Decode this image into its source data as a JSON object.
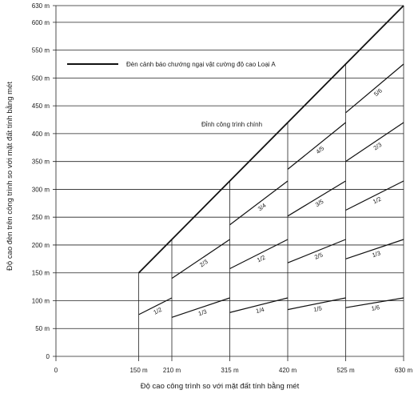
{
  "chart_data": {
    "type": "line",
    "title": "",
    "xlabel": "Độ cao công trình so với mặt đất tính bằng mét",
    "ylabel": "Độ cao đèn trên công trình so với mặt đất tính bằng mét",
    "xlim": [
      0,
      630
    ],
    "ylim": [
      0,
      630
    ],
    "x_ticks": [
      {
        "value": 0,
        "label": "0"
      },
      {
        "value": 150,
        "label": "150 m"
      },
      {
        "value": 210,
        "label": "210 m"
      },
      {
        "value": 315,
        "label": "315 m"
      },
      {
        "value": 420,
        "label": "420 m"
      },
      {
        "value": 525,
        "label": "525 m"
      },
      {
        "value": 630,
        "label": "630 m"
      }
    ],
    "y_ticks": [
      {
        "value": 0,
        "label": "0"
      },
      {
        "value": 50,
        "label": "50 m"
      },
      {
        "value": 100,
        "label": "100 m"
      },
      {
        "value": 150,
        "label": "150 m"
      },
      {
        "value": 200,
        "label": "200 m"
      },
      {
        "value": 250,
        "label": "250 m"
      },
      {
        "value": 300,
        "label": "300 m"
      },
      {
        "value": 350,
        "label": "350 m"
      },
      {
        "value": 400,
        "label": "400 m"
      },
      {
        "value": 450,
        "label": "450 m"
      },
      {
        "value": 500,
        "label": "500 m"
      },
      {
        "value": 550,
        "label": "550 m"
      },
      {
        "value": 600,
        "label": "600 m"
      },
      {
        "value": 630,
        "label": "630 m"
      }
    ],
    "grid": true,
    "legend": {
      "label": "Đèn cảnh báo chướng ngại vật cường độ cao  Loại A",
      "placement": "top-left"
    },
    "annotation": "Đỉnh công trình chính",
    "envelope": {
      "x": [
        150,
        630
      ],
      "y": [
        150,
        630
      ]
    },
    "segments": [
      {
        "label": "1/2",
        "x": [
          150,
          210
        ],
        "y": [
          75,
          105
        ]
      },
      {
        "label": "1/3",
        "x": [
          210,
          315
        ],
        "y": [
          70,
          105
        ]
      },
      {
        "label": "2/3",
        "x": [
          210,
          315
        ],
        "y": [
          140,
          210
        ]
      },
      {
        "label": "1/4",
        "x": [
          315,
          420
        ],
        "y": [
          78.75,
          105
        ]
      },
      {
        "label": "1/2",
        "x": [
          315,
          420
        ],
        "y": [
          157.5,
          210
        ]
      },
      {
        "label": "3/4",
        "x": [
          315,
          420
        ],
        "y": [
          236.25,
          315
        ]
      },
      {
        "label": "1/5",
        "x": [
          420,
          525
        ],
        "y": [
          84,
          105
        ]
      },
      {
        "label": "2/5",
        "x": [
          420,
          525
        ],
        "y": [
          168,
          210
        ]
      },
      {
        "label": "3/5",
        "x": [
          420,
          525
        ],
        "y": [
          252,
          315
        ]
      },
      {
        "label": "4/5",
        "x": [
          420,
          525
        ],
        "y": [
          336,
          420
        ]
      },
      {
        "label": "1/6",
        "x": [
          525,
          630
        ],
        "y": [
          87.5,
          105
        ]
      },
      {
        "label": "1/3",
        "x": [
          525,
          630
        ],
        "y": [
          175,
          210
        ]
      },
      {
        "label": "1/2",
        "x": [
          525,
          630
        ],
        "y": [
          262.5,
          315
        ]
      },
      {
        "label": "2/3",
        "x": [
          525,
          630
        ],
        "y": [
          350,
          420
        ]
      },
      {
        "label": "5/6",
        "x": [
          525,
          630
        ],
        "y": [
          437.5,
          525
        ]
      }
    ]
  }
}
